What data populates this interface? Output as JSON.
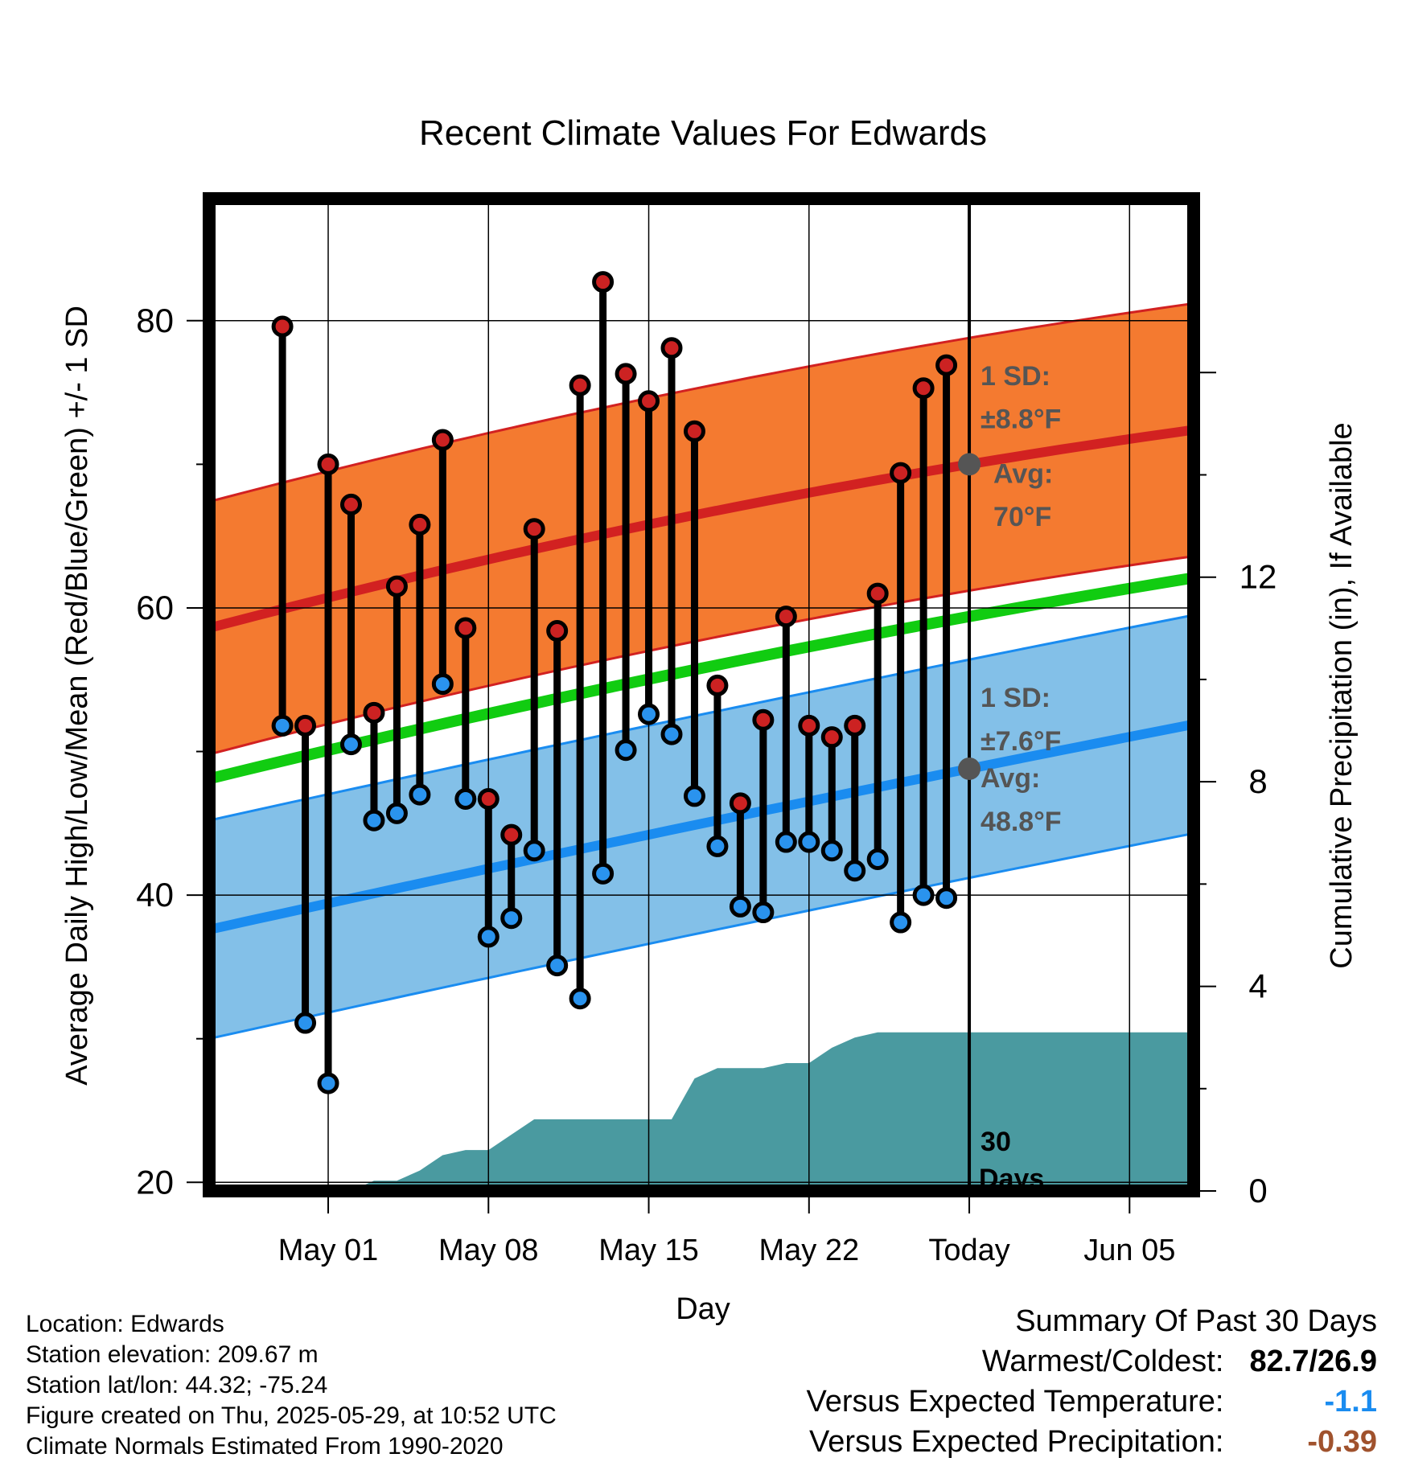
{
  "chart_data": {
    "type": "line",
    "title": "Recent Climate Values For Edwards",
    "xlabel": "Day",
    "ylabel_left": "Average Daily High/Low/Mean (Red/Blue/Green) +/- 1 SD",
    "ylabel_right": "Cumulative Precipitation (in), If Available",
    "x_tick_labels": [
      "May 01",
      "May 08",
      "May 15",
      "May 22",
      "Today",
      "Jun 05"
    ],
    "y_ticks_left": [
      20,
      40,
      60,
      80
    ],
    "y_ticks_right": [
      0,
      4,
      8,
      12
    ],
    "ylim_left": [
      19.4,
      88.5
    ],
    "ylim_right": [
      0,
      19.4
    ],
    "xlim_days": [
      -33.2,
      9.8
    ],
    "grid": true,
    "daily_days": [
      -30,
      -29,
      -28,
      -27,
      -26,
      -25,
      -24,
      -23,
      -22,
      -21,
      -20,
      -19,
      -18,
      -17,
      -16,
      -15,
      -14,
      -13,
      -12,
      -11,
      -10,
      -9,
      -8,
      -7,
      -6,
      -5,
      -4,
      -3,
      -2,
      -1
    ],
    "daily_high": [
      79.6,
      51.8,
      70.0,
      67.2,
      52.7,
      61.5,
      65.8,
      71.7,
      58.6,
      46.7,
      44.2,
      65.5,
      58.4,
      75.5,
      82.7,
      76.3,
      74.4,
      78.1,
      72.3,
      54.6,
      46.4,
      52.2,
      59.4,
      51.8,
      51.0,
      51.8,
      61.0,
      69.4,
      75.3,
      76.9
    ],
    "daily_low": [
      51.8,
      31.1,
      26.9,
      50.5,
      45.2,
      45.7,
      47.0,
      54.7,
      46.7,
      37.1,
      38.4,
      43.1,
      35.1,
      32.8,
      41.5,
      50.1,
      52.6,
      51.2,
      46.9,
      43.4,
      39.2,
      38.8,
      43.7,
      43.7,
      43.1,
      41.7,
      42.5,
      38.1,
      40.0,
      39.8
    ],
    "normal_high": {
      "start": 58.6,
      "today": 70.0,
      "end": 72.4
    },
    "normal_low": {
      "start": 37.6,
      "today": 48.8,
      "end": 51.9
    },
    "normal_mean": {
      "start": 48.1,
      "today": 59.4,
      "end": 62.1
    },
    "sd_high": 8.8,
    "sd_low": 7.6,
    "precip_days": [
      -33.2,
      -30,
      -29,
      -28,
      -27,
      -26,
      -25,
      -24,
      -23,
      -22,
      -21,
      -20,
      -19,
      -18,
      -17,
      -16,
      -15,
      -14,
      -13,
      -12,
      -11,
      -10,
      -9,
      -8,
      -7,
      -6,
      -5,
      -4,
      -3,
      9.8
    ],
    "precip_cumulative": [
      0,
      0,
      0,
      0,
      0,
      0.2,
      0.2,
      0.4,
      0.7,
      0.8,
      0.8,
      1.1,
      1.4,
      1.4,
      1.4,
      1.4,
      1.4,
      1.4,
      1.4,
      2.2,
      2.4,
      2.4,
      2.4,
      2.5,
      2.5,
      2.8,
      3.0,
      3.1,
      3.1,
      3.1
    ],
    "annotations": {
      "high_sd": "1 SD:",
      "high_sd_value": "±8.8°F",
      "high_avg": "Avg:",
      "high_avg_value": "70°F",
      "low_sd": "1 SD:",
      "low_sd_value": "±7.6°F",
      "low_avg": "Avg:",
      "low_avg_value": "48.8°F",
      "window_count": "30",
      "window_unit": "Days"
    },
    "colors": {
      "high_band": "#f47a30",
      "high_line": "#d22121",
      "low_band": "#83c0e8",
      "low_line": "#1a8cf0",
      "mean_line": "#11cc11",
      "precip": "#4a9aa0",
      "high_dot": "#cc2222",
      "low_dot": "#2a93ee",
      "annotation": "#555555"
    }
  },
  "station_info": {
    "location": "Location: Edwards",
    "elevation": "Station elevation: 209.67 m",
    "latlon": "Station lat/lon: 44.32; -75.24",
    "created": "Figure created on Thu, 2025-05-29, at 10:52 UTC",
    "normals": "Climate Normals Estimated From 1990-2020"
  },
  "summary": {
    "title": "Summary Of Past 30 Days",
    "warm_cold_label": "Warmest/Coldest:",
    "warm_cold_value": "82.7/26.9",
    "temp_label": "Versus Expected Temperature:",
    "temp_value": "-1.1",
    "temp_color": "#1a8cf0",
    "precip_label": "Versus Expected Precipitation:",
    "precip_value": "-0.39",
    "precip_color": "#a0522d"
  }
}
